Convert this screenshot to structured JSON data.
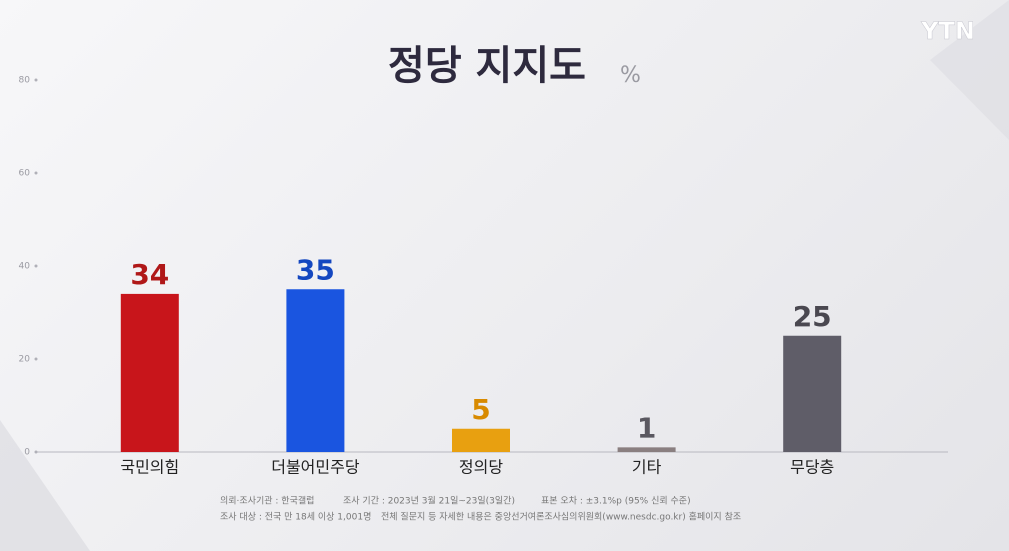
{
  "logo": "YTN",
  "chart_data": {
    "type": "bar",
    "title": "정당 지지도",
    "unit": "%",
    "categories": [
      "국민의힘",
      "더불어민주당",
      "정의당",
      "기타",
      "무당층"
    ],
    "values": [
      34,
      35,
      5,
      1,
      25
    ],
    "colors": [
      "#c8151b",
      "#1a55e0",
      "#e8a010",
      "#8a7f80",
      "#5f5d68"
    ],
    "label_colors": [
      "#b01818",
      "#1447c0",
      "#d88a00",
      "#5a5860",
      "#4a4850"
    ],
    "ylim": [
      0,
      80
    ],
    "yticks": [
      0,
      20,
      40,
      60,
      80
    ]
  },
  "notes": [
    "의뢰·조사기관 : 한국갤럽",
    "조사 기간 : 2023년 3월 21일~23일(3일간)",
    "표본 오차 : ±3.1%p (95% 신뢰 수준)",
    "조사 대상 : 전국 만 18세 이상 1,001명",
    "전체 질문지 등 자세한 내용은 중앙선거여론조사심의위원회(www.nesdc.go.kr) 홈페이지 참조"
  ]
}
